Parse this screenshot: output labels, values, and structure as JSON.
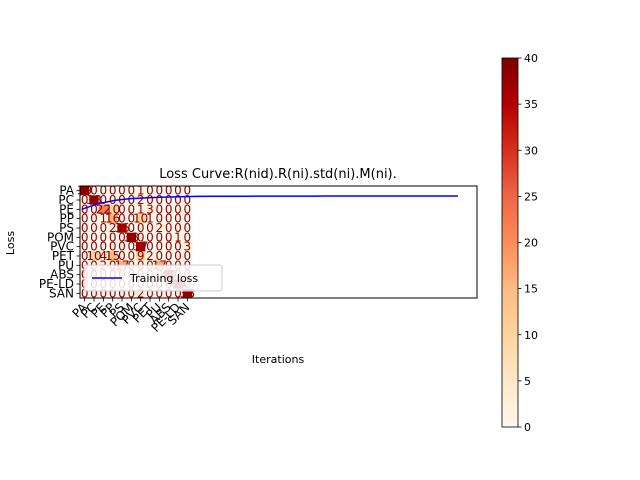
{
  "chart_data": {
    "type": "heatmap",
    "title": "Loss Curve:R(nid).R(ni).std(ni).M(ni).",
    "xlabel": "Iterations",
    "ylabel": "Loss",
    "row_labels": [
      "PA",
      "PC",
      "PE",
      "PP",
      "PS",
      "POM",
      "PVC",
      "PET",
      "PU",
      "ABS",
      "PE-LD",
      "SAN"
    ],
    "col_labels": [
      "PA",
      "PC",
      "PE",
      "PP",
      "PS",
      "POM",
      "PVC",
      "PET",
      "PU",
      "ABS",
      "PE-LD",
      "SAN"
    ],
    "matrix": [
      [
        39,
        0,
        0,
        0,
        0,
        0,
        1,
        0,
        0,
        0,
        0,
        0
      ],
      [
        0,
        38,
        0,
        0,
        0,
        0,
        2,
        0,
        0,
        0,
        0,
        0
      ],
      [
        0,
        0,
        22,
        10,
        0,
        0,
        1,
        3,
        0,
        0,
        0,
        0
      ],
      [
        0,
        0,
        1,
        16,
        0,
        0,
        10,
        1,
        0,
        0,
        0,
        0
      ],
      [
        0,
        0,
        0,
        2,
        36,
        0,
        0,
        0,
        2,
        0,
        0,
        0
      ],
      [
        0,
        0,
        0,
        0,
        0,
        38,
        0,
        0,
        0,
        0,
        1,
        0
      ],
      [
        0,
        0,
        0,
        0,
        0,
        0,
        37,
        0,
        0,
        0,
        0,
        3
      ],
      [
        0,
        10,
        4,
        15,
        0,
        0,
        9,
        2,
        0,
        0,
        0,
        0
      ],
      [
        0,
        0,
        2,
        0,
        17,
        0,
        0,
        0,
        17,
        0,
        0,
        0
      ],
      [
        0,
        0,
        0,
        0,
        0,
        0,
        0,
        0,
        0,
        40,
        0,
        0
      ],
      [
        0,
        0,
        0,
        0,
        0,
        0,
        0,
        0,
        0,
        0,
        40,
        0
      ],
      [
        0,
        0,
        0,
        0,
        0,
        0,
        2,
        0,
        0,
        0,
        0,
        38
      ]
    ],
    "series": [
      {
        "name": "Training loss",
        "color": "#0000ff",
        "values": [
          4.0,
          6.5,
          8.0,
          8.8,
          9.2,
          9.5,
          9.7,
          9.8,
          9.85,
          9.9,
          9.93,
          9.95,
          9.96,
          9.97,
          9.97,
          9.98,
          9.98,
          9.98,
          9.99,
          9.99,
          9.99,
          9.99,
          10.0,
          10.0
        ]
      }
    ],
    "colorbar": {
      "colormap": "OrRd",
      "min": 0,
      "max": 40,
      "ticks": [
        "0",
        "5",
        "10",
        "15",
        "20",
        "25",
        "30",
        "35",
        "40"
      ]
    },
    "legend": {
      "position": "lower left"
    },
    "grid": false
  }
}
